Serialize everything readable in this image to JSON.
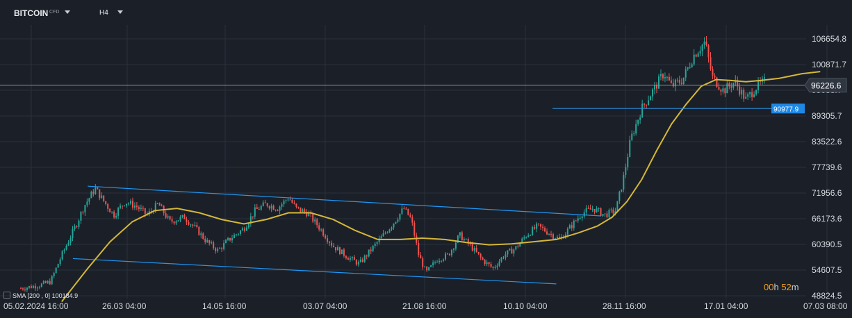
{
  "header": {
    "symbol": "BITCOIN",
    "symbol_badge": "CFD",
    "timeframe": "H4"
  },
  "indicator": {
    "label": "SMA",
    "params": "[200 , 0]",
    "value": "100184.9"
  },
  "countdown": {
    "hours": "00",
    "h_unit": "h",
    "minutes": "52",
    "m_unit": "m"
  },
  "colors": {
    "background": "#1b2028",
    "grid": "#2a313b",
    "candle_up": "#26a69a",
    "candle_down": "#ef5350",
    "sma": "#d4b73a",
    "channel": "#2196f3",
    "level_line": "#2b8fe0",
    "price_line": "#8a929d",
    "countdown": "#f0a020"
  },
  "chart_data": {
    "type": "candlestick",
    "timeframe": "H4",
    "y_axis_ticks": [
      106654.8,
      100871.7,
      95088.7,
      89305.7,
      83522.6,
      77739.6,
      71956.6,
      66173.6,
      60390.5,
      54607.5,
      48824.5
    ],
    "x_axis_ticks": [
      "05.02.2024  16:00",
      "26.03  04:00",
      "14.05  16:00",
      "03.07  04:00",
      "21.08  16:00",
      "10.10  04:00",
      "28.11  16:00",
      "17.01  04:00",
      "07.03  08:00"
    ],
    "ylim": [
      48000,
      113000
    ],
    "current_price": "96226.6",
    "horizontal_level": "90977.9",
    "close_path": [
      [
        0,
        50500
      ],
      [
        0.025,
        51200
      ],
      [
        0.04,
        52000
      ],
      [
        0.055,
        58000
      ],
      [
        0.075,
        65000
      ],
      [
        0.085,
        69000
      ],
      [
        0.1,
        73000
      ],
      [
        0.112,
        70000
      ],
      [
        0.125,
        67000
      ],
      [
        0.14,
        70000
      ],
      [
        0.155,
        69000
      ],
      [
        0.17,
        67000
      ],
      [
        0.185,
        69500
      ],
      [
        0.2,
        65500
      ],
      [
        0.22,
        66500
      ],
      [
        0.235,
        64000
      ],
      [
        0.25,
        61000
      ],
      [
        0.265,
        59000
      ],
      [
        0.28,
        61500
      ],
      [
        0.3,
        64000
      ],
      [
        0.315,
        68000
      ],
      [
        0.33,
        69500
      ],
      [
        0.345,
        68500
      ],
      [
        0.36,
        71000
      ],
      [
        0.37,
        68500
      ],
      [
        0.385,
        67500
      ],
      [
        0.4,
        64500
      ],
      [
        0.42,
        60000
      ],
      [
        0.44,
        57500
      ],
      [
        0.455,
        56000
      ],
      [
        0.47,
        59000
      ],
      [
        0.485,
        62000
      ],
      [
        0.5,
        65000
      ],
      [
        0.515,
        68500
      ],
      [
        0.525,
        66000
      ],
      [
        0.535,
        58000
      ],
      [
        0.545,
        54000
      ],
      [
        0.56,
        57000
      ],
      [
        0.575,
        58000
      ],
      [
        0.59,
        62500
      ],
      [
        0.605,
        60000
      ],
      [
        0.62,
        57000
      ],
      [
        0.635,
        55000
      ],
      [
        0.65,
        58000
      ],
      [
        0.665,
        59500
      ],
      [
        0.68,
        62500
      ],
      [
        0.695,
        64500
      ],
      [
        0.71,
        63000
      ],
      [
        0.725,
        61500
      ],
      [
        0.74,
        64500
      ],
      [
        0.755,
        67500
      ],
      [
        0.77,
        68500
      ],
      [
        0.785,
        67000
      ],
      [
        0.8,
        68000
      ],
      [
        0.81,
        75000
      ],
      [
        0.82,
        84000
      ],
      [
        0.835,
        91000
      ],
      [
        0.85,
        95000
      ],
      [
        0.865,
        99000
      ],
      [
        0.875,
        96000
      ],
      [
        0.89,
        97500
      ],
      [
        0.905,
        103000
      ],
      [
        0.92,
        106000
      ],
      [
        0.93,
        98000
      ],
      [
        0.945,
        95000
      ],
      [
        0.96,
        97000
      ],
      [
        0.975,
        93000
      ],
      [
        0.99,
        96000
      ],
      [
        1,
        97000
      ]
    ],
    "sma_path": [
      [
        0.055,
        47500
      ],
      [
        0.09,
        55000
      ],
      [
        0.12,
        61000
      ],
      [
        0.15,
        65500
      ],
      [
        0.18,
        68000
      ],
      [
        0.21,
        68500
      ],
      [
        0.24,
        67500
      ],
      [
        0.27,
        66000
      ],
      [
        0.3,
        65000
      ],
      [
        0.33,
        66000
      ],
      [
        0.36,
        67500
      ],
      [
        0.39,
        67500
      ],
      [
        0.42,
        66000
      ],
      [
        0.45,
        63500
      ],
      [
        0.48,
        61500
      ],
      [
        0.51,
        61500
      ],
      [
        0.54,
        61800
      ],
      [
        0.57,
        61500
      ],
      [
        0.6,
        60800
      ],
      [
        0.63,
        60300
      ],
      [
        0.66,
        60500
      ],
      [
        0.69,
        61000
      ],
      [
        0.72,
        61500
      ],
      [
        0.75,
        63000
      ],
      [
        0.775,
        64500
      ],
      [
        0.795,
        66500
      ],
      [
        0.815,
        70000
      ],
      [
        0.835,
        75000
      ],
      [
        0.855,
        81500
      ],
      [
        0.875,
        87500
      ],
      [
        0.895,
        92000
      ],
      [
        0.915,
        96000
      ],
      [
        0.935,
        97500
      ],
      [
        0.955,
        97300
      ],
      [
        0.975,
        97000
      ],
      [
        0.995,
        97300
      ],
      [
        1.02,
        97800
      ],
      [
        1.05,
        98800
      ],
      [
        1.075,
        99300
      ]
    ],
    "channel_upper": [
      [
        0.09,
        73500
      ],
      [
        0.78,
        66800
      ]
    ],
    "channel_lower": [
      [
        0.07,
        57200
      ],
      [
        0.72,
        51500
      ]
    ],
    "level_line": {
      "value": 90977.9,
      "from": 0.715,
      "to": 1
    }
  }
}
